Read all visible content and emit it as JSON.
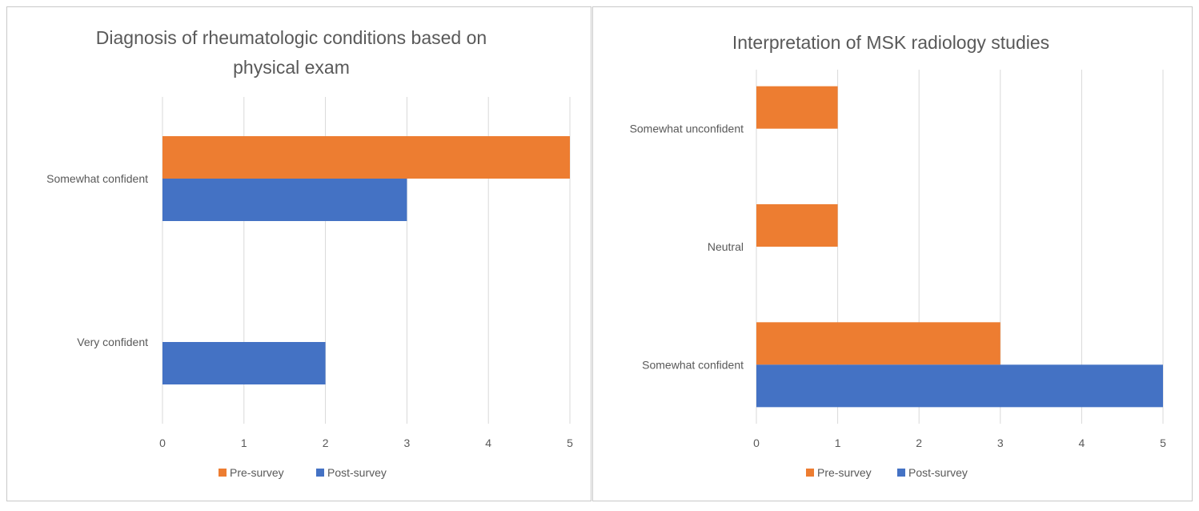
{
  "colors": {
    "pre": "#ED7D31",
    "post": "#4472C4",
    "grid": "#d9d9d9",
    "text": "#595959"
  },
  "chart_data": [
    {
      "type": "bar",
      "orientation": "horizontal",
      "title": "Diagnosis of rheumatologic conditions based on physical exam",
      "title_lines": [
        "Diagnosis of rheumatologic conditions based on",
        "physical exam"
      ],
      "categories": [
        "Somewhat confident",
        "Very confident"
      ],
      "series": [
        {
          "name": "Pre-survey",
          "values": [
            5,
            0
          ]
        },
        {
          "name": "Post-survey",
          "values": [
            3,
            2
          ]
        }
      ],
      "xlim": [
        0,
        5
      ],
      "ticks": [
        0,
        1,
        2,
        3,
        4,
        5
      ],
      "grid": true,
      "legend": "bottom"
    },
    {
      "type": "bar",
      "orientation": "horizontal",
      "title": "Interpretation of MSK radiology studies",
      "title_lines": [
        "Interpretation of MSK radiology studies"
      ],
      "categories": [
        "Somewhat unconfident",
        "Neutral",
        "Somewhat confident"
      ],
      "series": [
        {
          "name": "Pre-survey",
          "values": [
            1,
            1,
            3
          ]
        },
        {
          "name": "Post-survey",
          "values": [
            0,
            0,
            5
          ]
        }
      ],
      "xlim": [
        0,
        5
      ],
      "ticks": [
        0,
        1,
        2,
        3,
        4,
        5
      ],
      "grid": true,
      "legend": "bottom"
    }
  ]
}
